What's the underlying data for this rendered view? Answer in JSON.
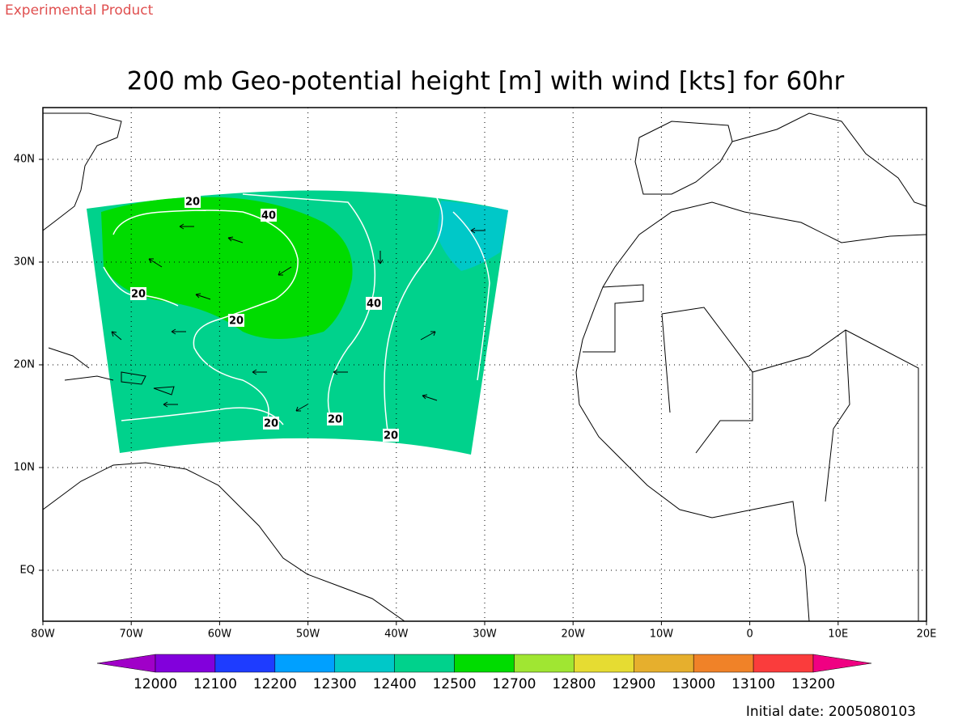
{
  "header": {
    "note": "Experimental Product",
    "title": "200 mb Geo-potential height [m] with wind [kts] for 60hr"
  },
  "map": {
    "lon_labels": [
      "80W",
      "70W",
      "60W",
      "50W",
      "40W",
      "30W",
      "20W",
      "10W",
      "0",
      "10E",
      "20E"
    ],
    "lat_labels": [
      "40N",
      "30N",
      "20N",
      "10N",
      "EQ"
    ],
    "contour_labels": [
      20,
      40,
      20,
      20,
      40,
      20,
      20,
      20
    ]
  },
  "colorbar": {
    "levels": [
      12000,
      12100,
      12200,
      12300,
      12400,
      12500,
      12700,
      12800,
      12900,
      13000,
      13100,
      13200
    ],
    "colors": [
      "#a000c8",
      "#8200dc",
      "#1e3cff",
      "#00a0ff",
      "#00c8c8",
      "#00d28c",
      "#00dc00",
      "#a0e632",
      "#e6dc32",
      "#e6af2d",
      "#f08228",
      "#fa3c3c",
      "#f00082"
    ]
  },
  "footer": {
    "initial_date": "Initial date: 2005080103"
  }
}
